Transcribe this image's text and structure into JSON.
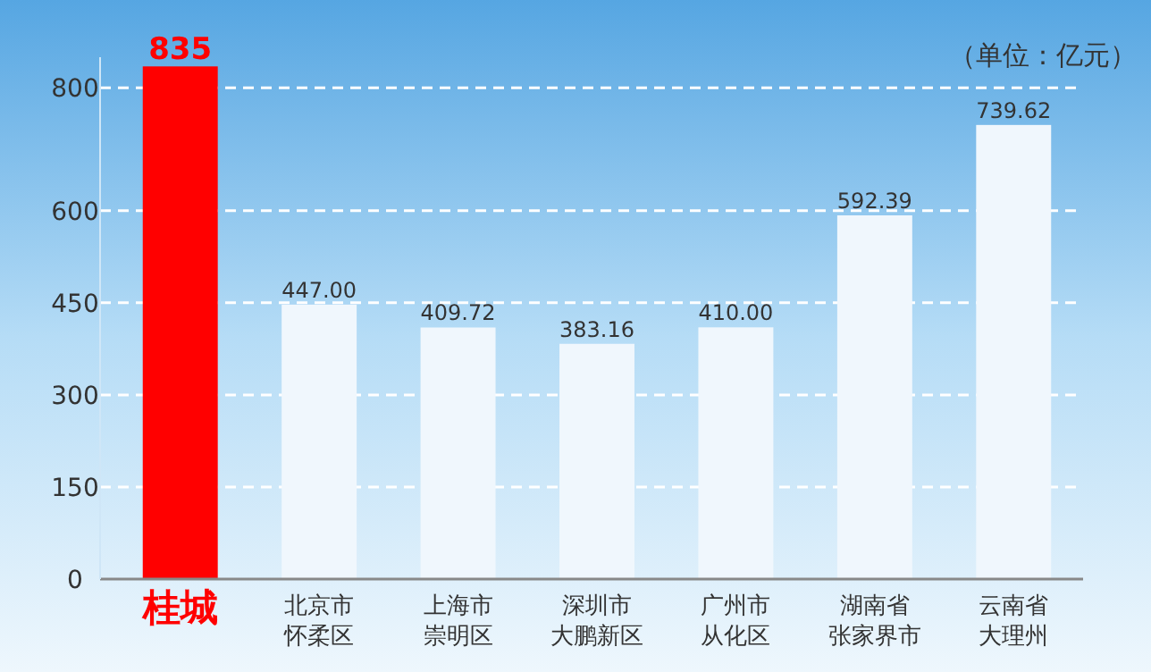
{
  "chart_data": {
    "type": "bar",
    "categories": [
      "桂城",
      "北京市怀柔区",
      "上海市崇明区",
      "深圳市大鹏新区",
      "广州市从化区",
      "湖南省张家界市",
      "云南省大理州"
    ],
    "values": [
      835,
      447,
      409.72,
      383.16,
      410,
      592.39,
      739.62
    ],
    "colors": [
      "#ff0000",
      "#f0f7fd",
      "#f0f7fd",
      "#f0f7fd",
      "#f0f7fd",
      "#f0f7fd",
      "#f0f7fd"
    ],
    "value_labels": [
      "835",
      "447.00",
      "409.72",
      "383.16",
      "410.00",
      "592.39",
      "739.62"
    ],
    "annotations": [
      "（单位：亿元）"
    ],
    "ylim": [
      0,
      850
    ],
    "yticks": [
      0,
      150,
      300,
      450,
      600,
      800
    ],
    "grid": "y"
  }
}
